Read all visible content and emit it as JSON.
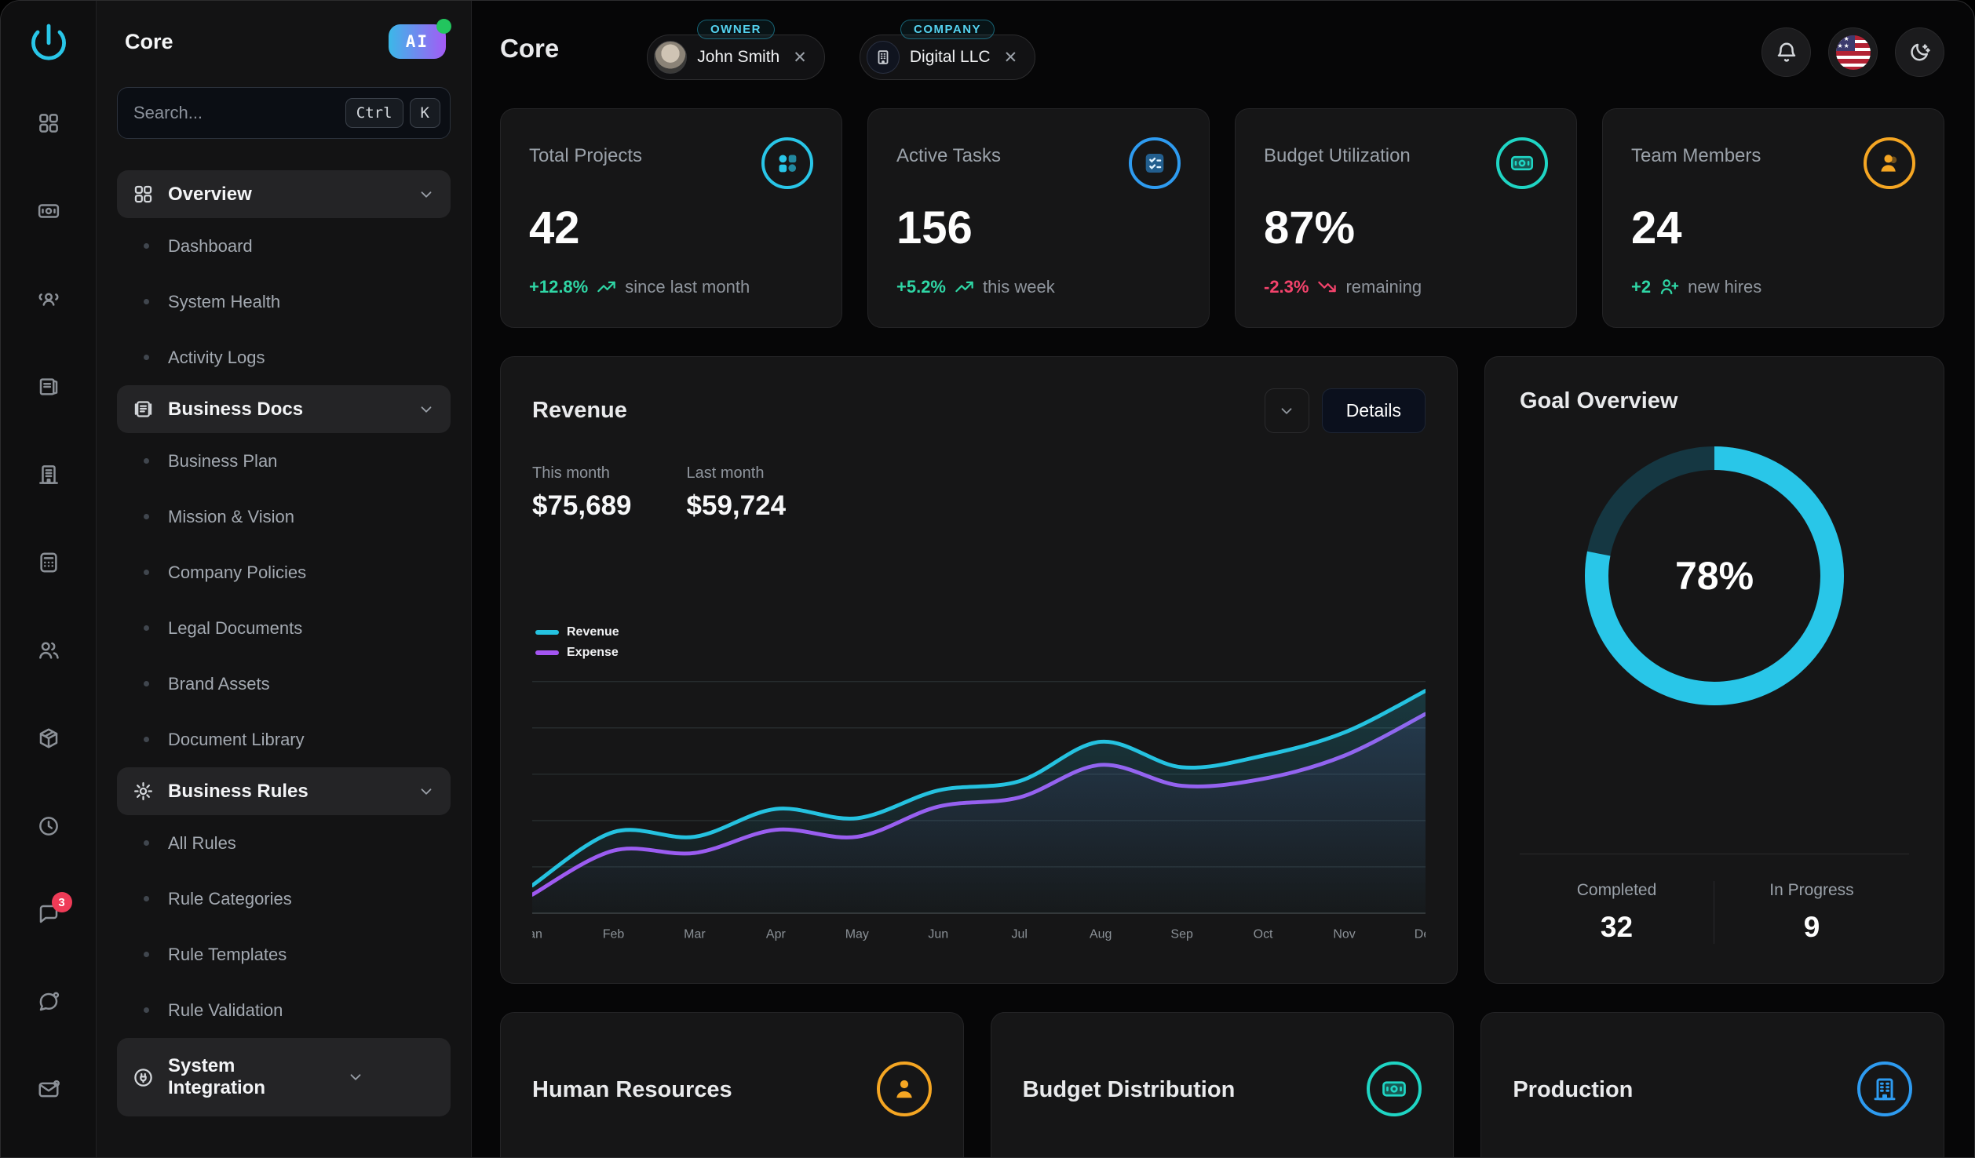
{
  "colors": {
    "accent_cyan": "#29c6e8",
    "accent_blue": "#2e9bf0",
    "accent_teal": "#1fd5c4",
    "accent_amber": "#f5a623",
    "accent_purple": "#a855f7",
    "positive_green": "#2fd6a5",
    "negative_red": "#f4436c"
  },
  "rail": {
    "icons": [
      "dashboard-grid",
      "banknote",
      "user-group",
      "library",
      "building",
      "calculator",
      "users",
      "package",
      "clock",
      "chat",
      "message",
      "mail"
    ],
    "chat_badge": "3"
  },
  "sidebar": {
    "title": "Core",
    "ai_badge": "AI",
    "search": {
      "placeholder": "Search...",
      "shortcut_keys": [
        "Ctrl",
        "K"
      ]
    },
    "sections": [
      {
        "label": "Overview",
        "items": [
          "Dashboard",
          "System Health",
          "Activity Logs"
        ]
      },
      {
        "label": "Business Docs",
        "items": [
          "Business Plan",
          "Mission & Vision",
          "Company Policies",
          "Legal Documents",
          "Brand Assets",
          "Document Library"
        ]
      },
      {
        "label": "Business Rules",
        "items": [
          "All Rules",
          "Rule Categories",
          "Rule Templates",
          "Rule Validation"
        ]
      },
      {
        "label": "System Integration",
        "items": []
      }
    ]
  },
  "header": {
    "title": "Core",
    "owner_tag": "OWNER",
    "owner_name": "John Smith",
    "company_tag": "COMPANY",
    "company_name": "Digital LLC",
    "close_glyph": "✕"
  },
  "stats": [
    {
      "label": "Total Projects",
      "value": "42",
      "delta": "+12.8%",
      "note": "since last month",
      "trend": "up"
    },
    {
      "label": "Active Tasks",
      "value": "156",
      "delta": "+5.2%",
      "note": "this week",
      "trend": "up"
    },
    {
      "label": "Budget Utilization",
      "value": "87%",
      "delta": "-2.3%",
      "note": "remaining",
      "trend": "down"
    },
    {
      "label": "Team Members",
      "value": "24",
      "delta": "+2",
      "note": "new hires",
      "trend": "up"
    }
  ],
  "revenue": {
    "title": "Revenue",
    "details_button": "Details",
    "this_month_label": "This month",
    "this_month_value": "$75,689",
    "last_month_label": "Last month",
    "last_month_value": "$59,724"
  },
  "chart_data": {
    "type": "line",
    "x": [
      "Jan",
      "Feb",
      "Mar",
      "Apr",
      "May",
      "Jun",
      "Jul",
      "Aug",
      "Sep",
      "Oct",
      "Nov",
      "Dec"
    ],
    "series": [
      {
        "name": "Revenue",
        "color": "#25c2e0",
        "values": [
          12,
          35,
          33,
          45,
          41,
          53,
          57,
          74,
          63,
          68,
          78,
          96
        ]
      },
      {
        "name": "Expense",
        "color": "#a455f2",
        "values": [
          8,
          27,
          26,
          36,
          33,
          46,
          50,
          64,
          55,
          58,
          68,
          86
        ]
      }
    ],
    "ylim": [
      0,
      100
    ],
    "grid": true,
    "legend_position": "top-left",
    "y_tick_labels_visible": false
  },
  "goal": {
    "title": "Goal Overview",
    "percent": "78%",
    "percent_value": 78,
    "completed_label": "Completed",
    "completed_value": "32",
    "in_progress_label": "In Progress",
    "in_progress_value": "9"
  },
  "bottom_cards": [
    {
      "title": "Human Resources"
    },
    {
      "title": "Budget Distribution"
    },
    {
      "title": "Production"
    }
  ]
}
